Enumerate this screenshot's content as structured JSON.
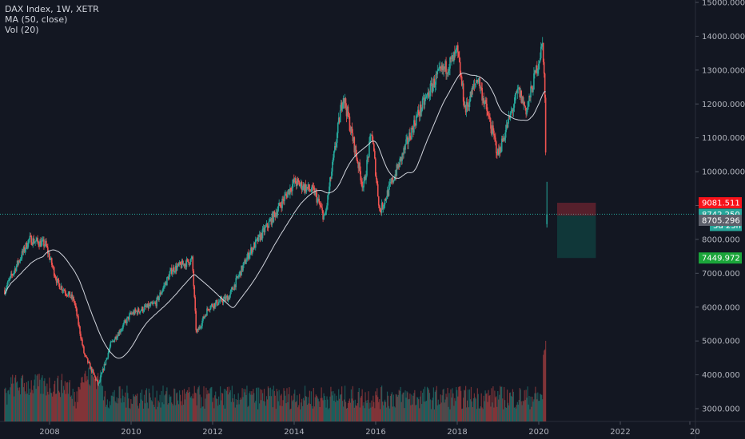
{
  "legend": {
    "title": "DAX Index, 1W, XETR",
    "ma": "MA (50, close)",
    "vol": "Vol (20)"
  },
  "chart_data": {
    "type": "candlestick",
    "symbol": "DAX Index",
    "interval": "1W",
    "exchange": "XETR",
    "y_ticks": [
      "3000.000",
      "4000.000",
      "5000.000",
      "6000.000",
      "7000.000",
      "8000.000",
      "9000.000",
      "10000.000",
      "11000.000",
      "12000.000",
      "13000.000",
      "14000.000",
      "15000.000"
    ],
    "x_ticks": [
      "2008",
      "2010",
      "2012",
      "2014",
      "2016",
      "2018",
      "2020",
      "2022",
      "20"
    ],
    "ylim": [
      2800,
      15000
    ],
    "xlim": [
      2006.9,
      2023.9
    ],
    "price_path": [
      {
        "x": 2006.9,
        "y": 6500
      },
      {
        "x": 2007.5,
        "y": 8000
      },
      {
        "x": 2007.9,
        "y": 7850
      },
      {
        "x": 2008.2,
        "y": 6700
      },
      {
        "x": 2008.6,
        "y": 6200
      },
      {
        "x": 2008.85,
        "y": 4600
      },
      {
        "x": 2009.2,
        "y": 3700
      },
      {
        "x": 2009.5,
        "y": 4900
      },
      {
        "x": 2010.0,
        "y": 5800
      },
      {
        "x": 2010.6,
        "y": 6100
      },
      {
        "x": 2011.0,
        "y": 7100
      },
      {
        "x": 2011.5,
        "y": 7400
      },
      {
        "x": 2011.6,
        "y": 5200
      },
      {
        "x": 2011.9,
        "y": 6000
      },
      {
        "x": 2012.4,
        "y": 6300
      },
      {
        "x": 2012.9,
        "y": 7600
      },
      {
        "x": 2013.4,
        "y": 8500
      },
      {
        "x": 2014.0,
        "y": 9700
      },
      {
        "x": 2014.5,
        "y": 9400
      },
      {
        "x": 2014.75,
        "y": 8600
      },
      {
        "x": 2015.2,
        "y": 12300
      },
      {
        "x": 2015.7,
        "y": 9500
      },
      {
        "x": 2015.9,
        "y": 11200
      },
      {
        "x": 2016.1,
        "y": 8800
      },
      {
        "x": 2016.6,
        "y": 10300
      },
      {
        "x": 2017.0,
        "y": 11600
      },
      {
        "x": 2017.5,
        "y": 12800
      },
      {
        "x": 2017.9,
        "y": 13300
      },
      {
        "x": 2018.0,
        "y": 13550
      },
      {
        "x": 2018.2,
        "y": 11800
      },
      {
        "x": 2018.5,
        "y": 12800
      },
      {
        "x": 2018.9,
        "y": 11000
      },
      {
        "x": 2019.0,
        "y": 10500
      },
      {
        "x": 2019.5,
        "y": 12400
      },
      {
        "x": 2019.7,
        "y": 11800
      },
      {
        "x": 2020.0,
        "y": 13300
      },
      {
        "x": 2020.1,
        "y": 13800
      },
      {
        "x": 2020.15,
        "y": 12200
      },
      {
        "x": 2020.18,
        "y": 9600
      }
    ],
    "current_price": 8742.25,
    "countdown": "3d 23h",
    "price_levels": {
      "stop": 9081.511,
      "entry": 8705.296,
      "target": 7449.972
    },
    "position_tool": {
      "x_start": 2020.45,
      "x_end": 2021.4
    }
  },
  "colors": {
    "background": "#131722",
    "up": "#26a69a",
    "down": "#ef5350",
    "ma": "#d1d4dc",
    "current": "#26a69a",
    "stop_tag": "#f7131a",
    "entry_tag": "#5d606b",
    "target_tag": "#1ba53a"
  }
}
